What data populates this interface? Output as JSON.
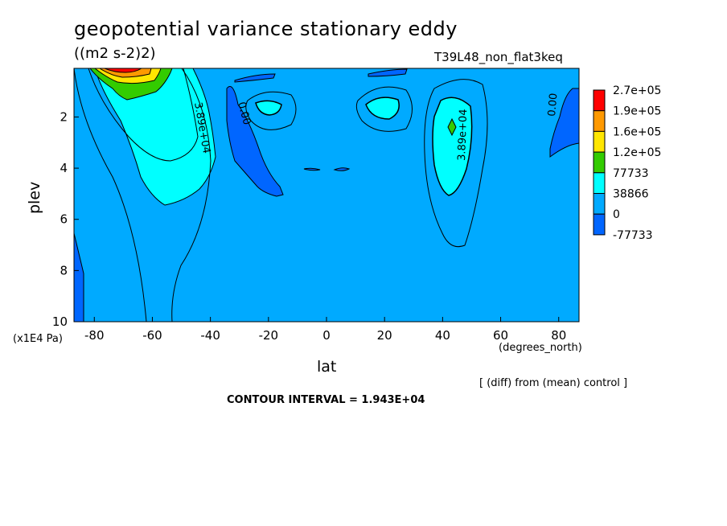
{
  "chart_data": {
    "type": "heatmap",
    "title": "geopotential variance stationary eddy",
    "units": "((m2 s-2)2)",
    "run_label": "T39L48_non_flat3keq",
    "xlabel": "lat",
    "x_unit": "(degrees_north)",
    "ylabel": "plev",
    "y_unit": "(x1E4 Pa)",
    "xlim": [
      -87,
      87
    ],
    "ylim": [
      10,
      0.1
    ],
    "x_ticks": [
      -80,
      -60,
      -40,
      -20,
      0,
      20,
      40,
      60,
      80
    ],
    "y_ticks": [
      2,
      4,
      6,
      8,
      10
    ],
    "colorbar": {
      "levels": [
        "2.7e+05",
        "1.9e+05",
        "1.6e+05",
        "1.2e+05",
        "77733",
        "38866",
        "0",
        "-77733"
      ],
      "colors": [
        "#ff0000",
        "#ff9900",
        "#ffe600",
        "#33cc00",
        "#00ffff",
        "#00aaff",
        "#0066ff"
      ]
    },
    "contour_labels": [
      "3.89e+04",
      "0.00",
      "3.89e+04",
      "0.00"
    ],
    "contour_interval": "CONTOUR INTERVAL = 1.943E+04",
    "note": "[ (diff) from (mean) control ]"
  }
}
